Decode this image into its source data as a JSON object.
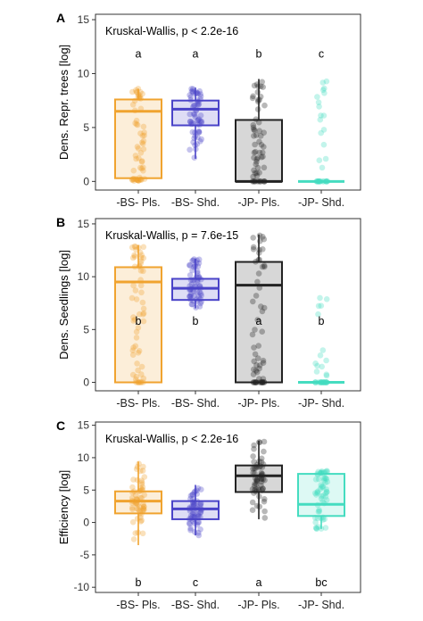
{
  "colors": {
    "bs_pls": "#f0a32f",
    "bs_shd": "#4a43c8",
    "jp_pls": "#222222",
    "jp_shd": "#45dcc0"
  },
  "chart_data": [
    {
      "type": "boxplot",
      "panel": "A",
      "annotation": "Kruskal-Wallis, p < 2.2e-16",
      "ylabel": "Dens. Repr. trees [log]",
      "ylim": [
        -0.8,
        15.5
      ],
      "yticks": [
        0,
        5,
        10,
        15
      ],
      "categories": [
        "-BS- Pls.",
        "-BS- Shd.",
        "-JP- Pls.",
        "-JP- Shd."
      ],
      "letters": [
        "a",
        "a",
        "b",
        "c"
      ],
      "letter_y": 11.8,
      "boxes": [
        {
          "q1": 0.3,
          "median": 6.5,
          "q3": 7.6,
          "whisker_low": 0.0,
          "whisker_high": 8.6
        },
        {
          "q1": 5.2,
          "median": 6.7,
          "q3": 7.5,
          "whisker_low": 2.1,
          "whisker_high": 8.7
        },
        {
          "q1": 0.0,
          "median": 0.0,
          "q3": 5.7,
          "whisker_low": 0.0,
          "whisker_high": 9.5
        },
        {
          "q1": 0.0,
          "median": 0.0,
          "q3": 0.0,
          "whisker_low": 0.0,
          "whisker_high": 0.0
        }
      ]
    },
    {
      "type": "boxplot",
      "panel": "B",
      "annotation": "Kruskal-Wallis, p = 7.6e-15",
      "ylabel": "Dens. Seedlings [log]",
      "ylim": [
        -0.8,
        15.5
      ],
      "yticks": [
        0,
        5,
        10,
        15
      ],
      "categories": [
        "-BS- Pls.",
        "-BS- Shd.",
        "-JP- Pls.",
        "-JP- Shd."
      ],
      "letters": [
        "b",
        "b",
        "a",
        "b"
      ],
      "letter_y": 5.8,
      "boxes": [
        {
          "q1": 0.0,
          "median": 9.5,
          "q3": 10.9,
          "whisker_low": 0.0,
          "whisker_high": 13.0
        },
        {
          "q1": 7.8,
          "median": 8.9,
          "q3": 9.8,
          "whisker_low": 7.0,
          "whisker_high": 11.7
        },
        {
          "q1": 0.0,
          "median": 9.2,
          "q3": 11.4,
          "whisker_low": 0.0,
          "whisker_high": 14.0
        },
        {
          "q1": 0.0,
          "median": 0.0,
          "q3": 0.0,
          "whisker_low": 0.0,
          "whisker_high": 0.0
        }
      ]
    },
    {
      "type": "boxplot",
      "panel": "C",
      "annotation": "Kruskal-Wallis, p < 2.2e-16",
      "ylabel": "Efficiency [log]",
      "ylim": [
        -10.8,
        15.5
      ],
      "yticks": [
        -10,
        -5,
        0,
        5,
        10,
        15
      ],
      "categories": [
        "-BS- Pls.",
        "-BS- Shd.",
        "-JP- Pls.",
        "-JP- Shd."
      ],
      "letters": [
        "b",
        "c",
        "a",
        "bc"
      ],
      "letter_y": -9.3,
      "boxes": [
        {
          "q1": 1.4,
          "median": 3.3,
          "q3": 4.8,
          "whisker_low": -3.5,
          "whisker_high": 9.4
        },
        {
          "q1": 0.5,
          "median": 2.1,
          "q3": 3.3,
          "whisker_low": -2.0,
          "whisker_high": 5.8
        },
        {
          "q1": 4.7,
          "median": 7.2,
          "q3": 8.8,
          "whisker_low": 0.5,
          "whisker_high": 12.6
        },
        {
          "q1": 1.0,
          "median": 2.8,
          "q3": 7.5,
          "whisker_low": -1.0,
          "whisker_high": 8.0
        }
      ]
    }
  ]
}
